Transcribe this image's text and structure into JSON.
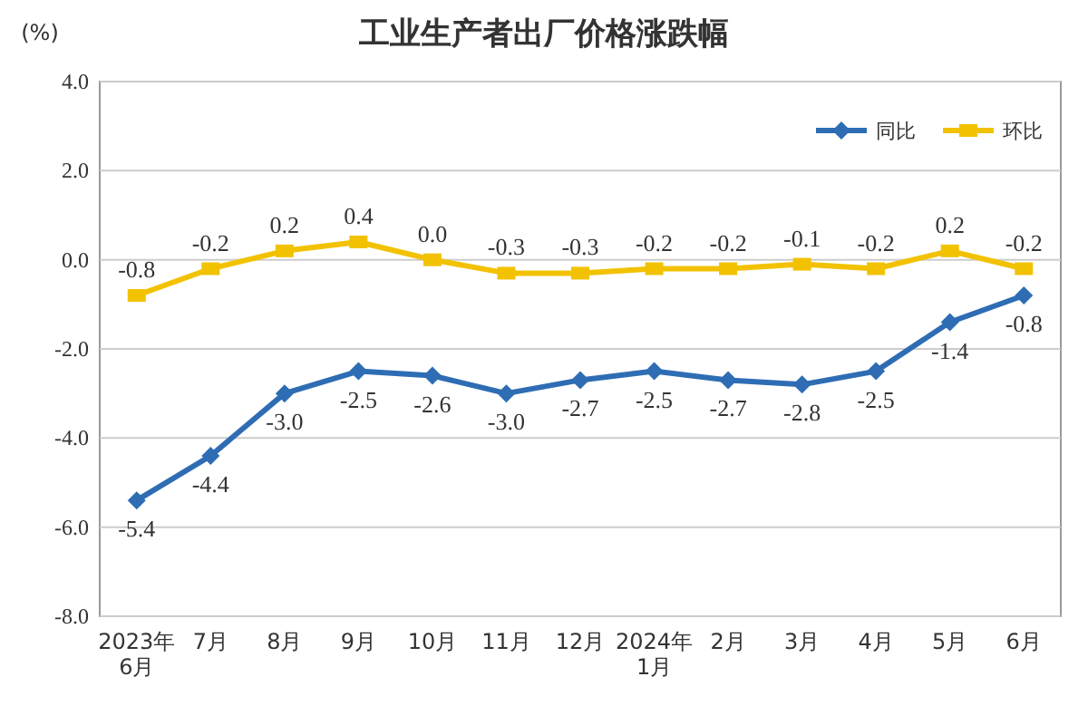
{
  "chart_data": {
    "type": "line",
    "title": "工业生产者出厂价格涨跌幅",
    "ylabel": "(%)",
    "categories": [
      "2023年\n6月",
      "7月",
      "8月",
      "9月",
      "10月",
      "11月",
      "12月",
      "2024年\n1月",
      "2月",
      "3月",
      "4月",
      "5月",
      "6月"
    ],
    "series": [
      {
        "name": "同比",
        "color": "#2e6db4",
        "marker": "diamond",
        "values": [
          -5.4,
          -4.4,
          -3.0,
          -2.5,
          -2.6,
          -3.0,
          -2.7,
          -2.5,
          -2.7,
          -2.8,
          -2.5,
          -1.4,
          -0.8
        ],
        "value_labels": [
          "-5.4",
          "-4.4",
          "-3.0",
          "-2.5",
          "-2.6",
          "-3.0",
          "-2.7",
          "-2.5",
          "-2.7",
          "-2.8",
          "-2.5",
          "-1.4",
          "-0.8"
        ]
      },
      {
        "name": "环比",
        "color": "#f2c200",
        "marker": "square",
        "values": [
          -0.8,
          -0.2,
          0.2,
          0.4,
          0.0,
          -0.3,
          -0.3,
          -0.2,
          -0.2,
          -0.1,
          -0.2,
          0.2,
          -0.2
        ],
        "value_labels": [
          "-0.8",
          "-0.2",
          "0.2",
          "0.4",
          "0.0",
          "-0.3",
          "-0.3",
          "-0.2",
          "-0.2",
          "-0.1",
          "-0.2",
          "0.2",
          "-0.2"
        ]
      }
    ],
    "ylim": [
      -8,
      4
    ],
    "yticks": [
      {
        "value": 4,
        "label": "4.0"
      },
      {
        "value": 2,
        "label": "2.0"
      },
      {
        "value": 0,
        "label": "0.0"
      },
      {
        "value": -2,
        "label": "-2.0"
      },
      {
        "value": -4,
        "label": "-4.0"
      },
      {
        "value": -6,
        "label": "-6.0"
      },
      {
        "value": -8,
        "label": "-8.0"
      }
    ],
    "grid": "y",
    "legend": "top right",
    "line_style": "solid"
  }
}
